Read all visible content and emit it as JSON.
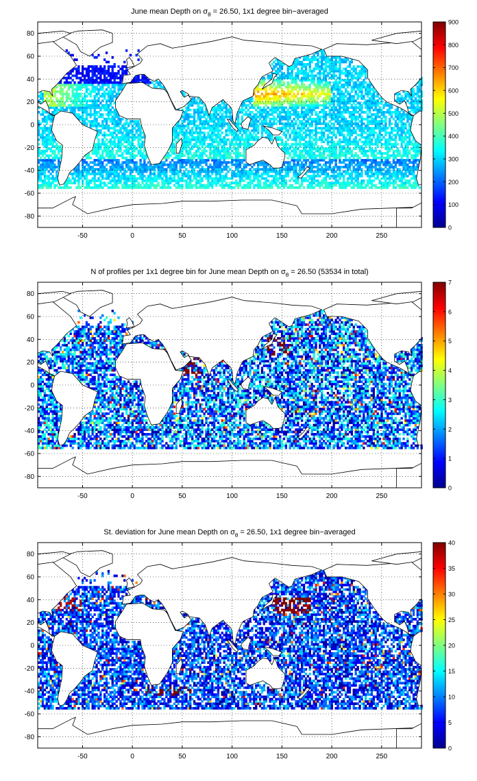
{
  "figure": {
    "panels": [
      {
        "id": "depth",
        "title_pre": "June mean Depth on ",
        "sigma": "σ",
        "sub": "θ",
        "title_post": " = 26.50, 1x1 degree bin−averaged",
        "colorbar": {
          "min": 0,
          "max": 900,
          "ticks": [
            "0",
            "100",
            "200",
            "300",
            "400",
            "500",
            "600",
            "700",
            "800",
            "900"
          ]
        }
      },
      {
        "id": "count",
        "title_pre": "N of profiles per 1x1 degree bin for June mean Depth on ",
        "sigma": "σ",
        "sub": "θ",
        "title_post": " = 26.50 (53534 in total)",
        "colorbar": {
          "min": 0,
          "max": 7,
          "ticks": [
            "0",
            "1",
            "2",
            "3",
            "4",
            "5",
            "6",
            "7"
          ]
        }
      },
      {
        "id": "stdev",
        "title_pre": "St. deviation for June mean Depth on ",
        "sigma": "σ",
        "sub": "θ",
        "title_post": " = 26.50, 1x1 degree bin−averaged",
        "colorbar": {
          "min": 0,
          "max": 40,
          "ticks": [
            "0",
            "5",
            "10",
            "15",
            "20",
            "25",
            "30",
            "35",
            "40"
          ]
        }
      }
    ],
    "x_ticks": [
      "-50",
      "0",
      "50",
      "100",
      "150",
      "200",
      "250"
    ],
    "y_ticks": [
      "80",
      "60",
      "40",
      "20",
      "0",
      "-20",
      "-40",
      "-60",
      "-80"
    ],
    "xlim": [
      -95,
      290
    ],
    "ylim": [
      -90,
      90
    ],
    "colormap": "jet",
    "grid": "dotted"
  }
}
